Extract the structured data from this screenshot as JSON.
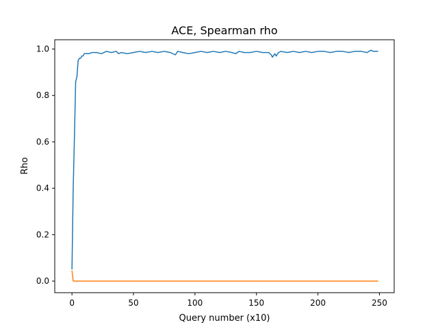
{
  "chart_data": {
    "type": "line",
    "title": "ACE, Spearman rho",
    "xlabel": "Query number (x10)",
    "ylabel": "Rho",
    "xlim": [
      -14,
      262
    ],
    "ylim": [
      -0.05,
      1.04
    ],
    "x_ticks": [
      0,
      50,
      100,
      150,
      200,
      250
    ],
    "x_tick_labels": [
      "0",
      "50",
      "100",
      "150",
      "200",
      "250"
    ],
    "y_ticks": [
      0.0,
      0.2,
      0.4,
      0.6,
      0.8,
      1.0
    ],
    "y_tick_labels": [
      "0.0",
      "0.2",
      "0.4",
      "0.6",
      "0.8",
      "1.0"
    ],
    "grid": false,
    "series": [
      {
        "color": "#1f77b4",
        "points": [
          [
            0,
            0.05
          ],
          [
            1,
            0.4
          ],
          [
            2,
            0.62
          ],
          [
            3,
            0.86
          ],
          [
            4,
            0.88
          ],
          [
            5,
            0.95
          ],
          [
            6,
            0.96
          ],
          [
            7,
            0.96
          ],
          [
            8,
            0.97
          ],
          [
            9,
            0.97
          ],
          [
            10,
            0.98
          ],
          [
            12,
            0.98
          ],
          [
            14,
            0.98
          ],
          [
            16,
            0.985
          ],
          [
            20,
            0.985
          ],
          [
            24,
            0.98
          ],
          [
            28,
            0.99
          ],
          [
            32,
            0.985
          ],
          [
            36,
            0.99
          ],
          [
            38,
            0.98
          ],
          [
            40,
            0.985
          ],
          [
            45,
            0.98
          ],
          [
            50,
            0.985
          ],
          [
            55,
            0.99
          ],
          [
            60,
            0.985
          ],
          [
            65,
            0.99
          ],
          [
            70,
            0.985
          ],
          [
            75,
            0.99
          ],
          [
            80,
            0.985
          ],
          [
            84,
            0.975
          ],
          [
            86,
            0.99
          ],
          [
            90,
            0.985
          ],
          [
            95,
            0.98
          ],
          [
            100,
            0.985
          ],
          [
            105,
            0.99
          ],
          [
            110,
            0.985
          ],
          [
            115,
            0.99
          ],
          [
            120,
            0.985
          ],
          [
            125,
            0.99
          ],
          [
            130,
            0.985
          ],
          [
            133,
            0.98
          ],
          [
            136,
            0.99
          ],
          [
            140,
            0.985
          ],
          [
            145,
            0.985
          ],
          [
            150,
            0.99
          ],
          [
            155,
            0.985
          ],
          [
            160,
            0.985
          ],
          [
            162,
            0.975
          ],
          [
            163,
            0.965
          ],
          [
            165,
            0.98
          ],
          [
            166,
            0.97
          ],
          [
            168,
            0.985
          ],
          [
            170,
            0.99
          ],
          [
            175,
            0.985
          ],
          [
            180,
            0.99
          ],
          [
            185,
            0.985
          ],
          [
            190,
            0.99
          ],
          [
            195,
            0.985
          ],
          [
            200,
            0.99
          ],
          [
            205,
            0.99
          ],
          [
            210,
            0.985
          ],
          [
            215,
            0.99
          ],
          [
            220,
            0.99
          ],
          [
            225,
            0.985
          ],
          [
            230,
            0.99
          ],
          [
            235,
            0.99
          ],
          [
            240,
            0.985
          ],
          [
            243,
            0.995
          ],
          [
            245,
            0.99
          ],
          [
            249,
            0.99
          ]
        ]
      },
      {
        "color": "#ff7f0e",
        "points": [
          [
            0,
            0.045
          ],
          [
            1,
            0.0
          ],
          [
            2,
            0.0
          ],
          [
            50,
            0.0
          ],
          [
            100,
            0.0
          ],
          [
            150,
            0.0
          ],
          [
            200,
            0.0
          ],
          [
            249,
            0.0
          ]
        ]
      }
    ]
  }
}
